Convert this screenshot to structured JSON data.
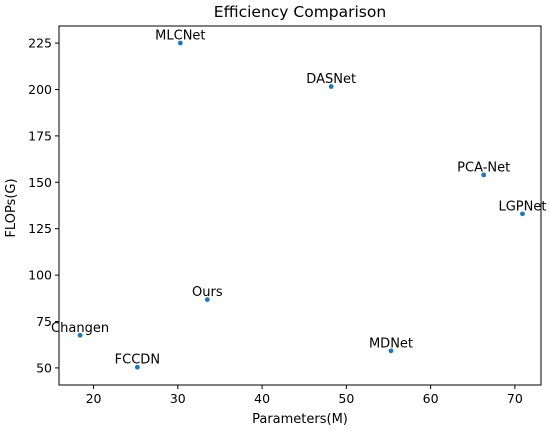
{
  "chart_data": {
    "type": "scatter",
    "title": "Efficiency Comparison",
    "xlabel": "Parameters(M)",
    "ylabel": "FLOPs(G)",
    "xlim": [
      15.9,
      73.1
    ],
    "ylim": [
      40.8,
      234.2
    ],
    "xticks": [
      20,
      30,
      40,
      50,
      60,
      70
    ],
    "yticks": [
      50,
      75,
      100,
      125,
      150,
      175,
      200,
      225
    ],
    "grid": false,
    "legend": "none",
    "color": "#1f77b4",
    "points": [
      {
        "label": "MLCNet",
        "x": 30.3,
        "y": 225.0
      },
      {
        "label": "DASNet",
        "x": 48.2,
        "y": 201.6
      },
      {
        "label": "PCA-Net",
        "x": 66.3,
        "y": 154.0
      },
      {
        "label": "LGPNet",
        "x": 70.9,
        "y": 133.0
      },
      {
        "label": "Ours",
        "x": 33.5,
        "y": 86.8
      },
      {
        "label": "Changen",
        "x": 18.4,
        "y": 67.6
      },
      {
        "label": "MDNet",
        "x": 55.3,
        "y": 59.2
      },
      {
        "label": "FCCDN",
        "x": 25.2,
        "y": 50.4
      }
    ]
  }
}
